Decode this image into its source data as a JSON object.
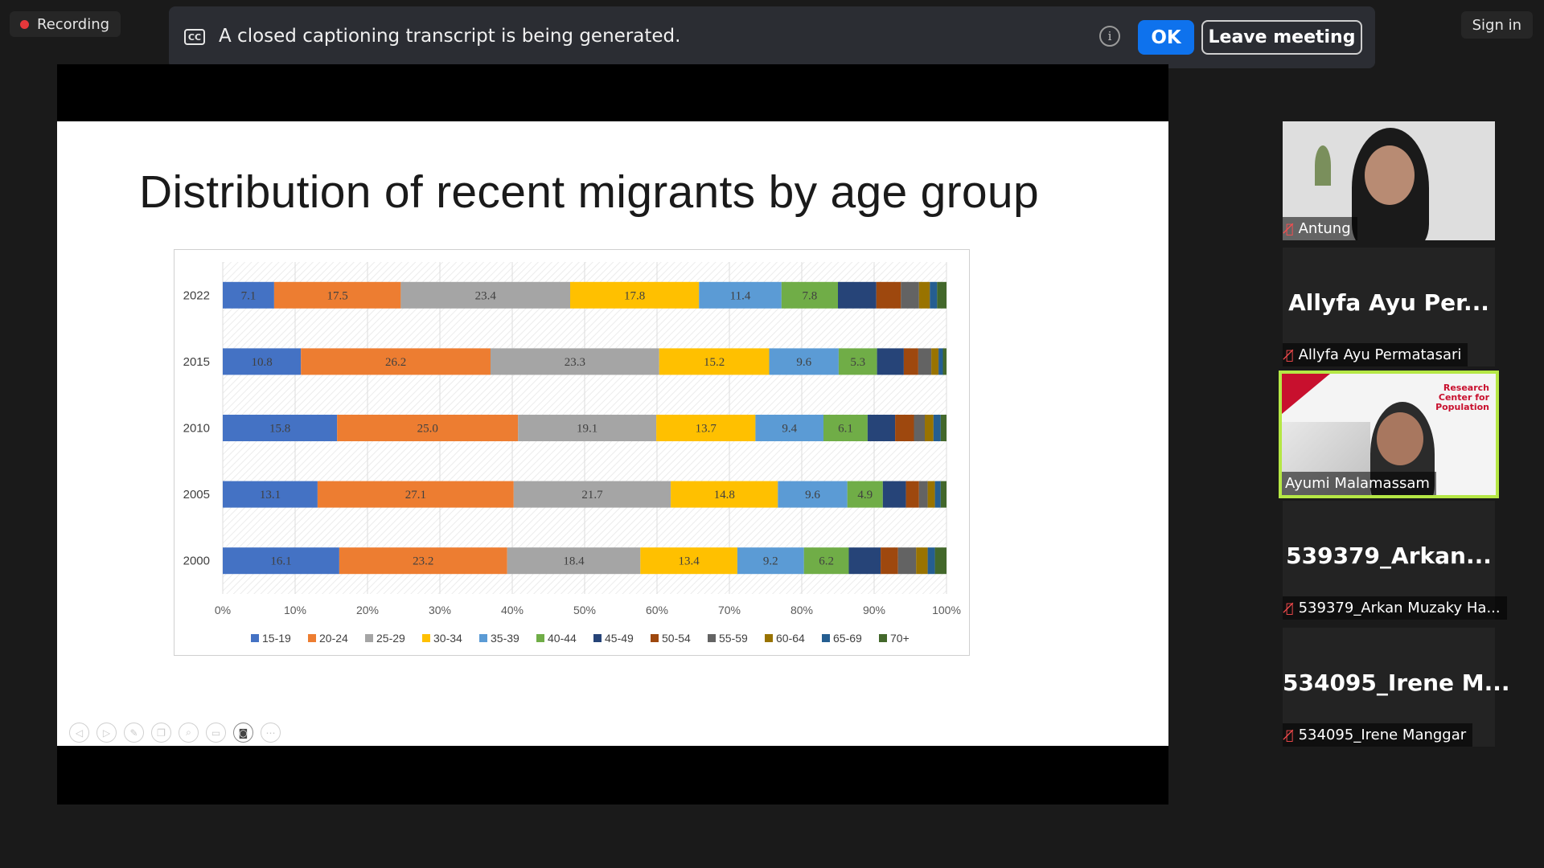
{
  "recording": {
    "label": "Recording"
  },
  "banner": {
    "cc_icon": "CC",
    "message": "A closed captioning transcript is being generated.",
    "info_icon": "i",
    "ok_label": "OK",
    "leave_label": "Leave meeting"
  },
  "signin_label": "Sign in",
  "slide": {
    "title": "Distribution of recent migrants by age group"
  },
  "chart_data": {
    "type": "bar",
    "orientation": "horizontal",
    "stacked": "100%",
    "title": "",
    "categories": [
      "2022",
      "2015",
      "2010",
      "2005",
      "2000"
    ],
    "series": [
      {
        "name": "15-19",
        "color": "#4472c4",
        "values": [
          7.1,
          10.8,
          15.8,
          13.1,
          16.1
        ]
      },
      {
        "name": "20-24",
        "color": "#ed7d31",
        "values": [
          17.5,
          26.2,
          25.0,
          27.1,
          23.2
        ]
      },
      {
        "name": "25-29",
        "color": "#a5a5a5",
        "values": [
          23.4,
          23.3,
          19.1,
          21.7,
          18.4
        ]
      },
      {
        "name": "30-34",
        "color": "#ffc000",
        "values": [
          17.8,
          15.2,
          13.7,
          14.8,
          13.4
        ]
      },
      {
        "name": "35-39",
        "color": "#5b9bd5",
        "values": [
          11.4,
          9.6,
          9.4,
          9.6,
          9.2
        ]
      },
      {
        "name": "40-44",
        "color": "#70ad47",
        "values": [
          7.8,
          5.3,
          6.1,
          4.9,
          6.2
        ]
      },
      {
        "name": "45-49",
        "color": "#264478",
        "values": [
          5.3,
          3.7,
          3.8,
          3.2,
          4.4
        ]
      },
      {
        "name": "50-54",
        "color": "#9e480e",
        "values": [
          3.4,
          2.0,
          2.6,
          1.8,
          2.4
        ]
      },
      {
        "name": "55-59",
        "color": "#636363",
        "values": [
          2.5,
          1.8,
          1.5,
          1.2,
          2.5
        ]
      },
      {
        "name": "60-64",
        "color": "#997300",
        "values": [
          1.5,
          1.0,
          1.2,
          1.0,
          1.6
        ]
      },
      {
        "name": "65-69",
        "color": "#255e91",
        "values": [
          1.0,
          0.6,
          1.0,
          0.8,
          1.0
        ]
      },
      {
        "name": "70+",
        "color": "#43682b",
        "values": [
          1.3,
          0.5,
          0.8,
          0.8,
          1.6
        ]
      }
    ],
    "data_labels_series": 6,
    "xlim": [
      0,
      100
    ],
    "xticks": [
      "0%",
      "10%",
      "20%",
      "30%",
      "40%",
      "50%",
      "60%",
      "70%",
      "80%",
      "90%",
      "100%"
    ],
    "grid": true,
    "legend": "bottom"
  },
  "toolbar": {
    "icons": [
      "prev-icon",
      "next-icon",
      "pen-icon",
      "copy-icon",
      "zoom-icon",
      "subtitle-icon",
      "camera-icon",
      "more-icon"
    ],
    "glyphs": [
      "◁",
      "▷",
      "✎",
      "❐",
      "⌕",
      "▭",
      "◙",
      "⋯"
    ]
  },
  "participants": [
    {
      "name": "Antung",
      "video": true,
      "muted": true
    },
    {
      "name": "Allyfa Ayu Permatasari",
      "short": "Allyfa Ayu Per...",
      "video": false,
      "muted": true
    },
    {
      "name": "Ayumi Malamassam",
      "video": true,
      "muted": false,
      "active": true,
      "background_text": "Research Center for Population"
    },
    {
      "name": "539379_Arkan Muzaky Ha...",
      "short": "539379_Arkan...",
      "video": false,
      "muted": true
    },
    {
      "name": "534095_Irene Manggar",
      "short": "534095_Irene  M...",
      "video": false,
      "muted": true
    }
  ]
}
